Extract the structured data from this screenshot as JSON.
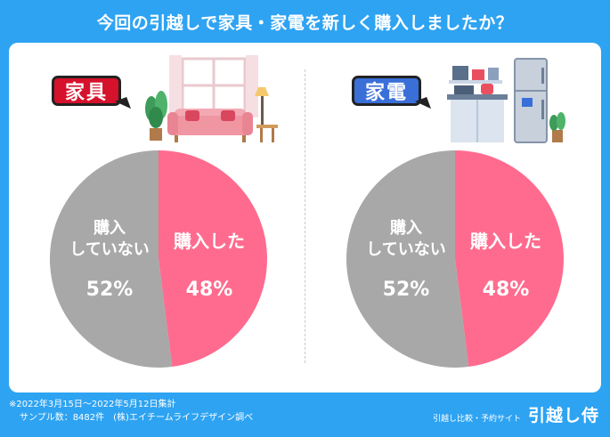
{
  "title": "今回の引越しで家具・家電を新しく購入しましたか？",
  "colors": {
    "background": "#2ea3f2",
    "bought": "#ff6b8e",
    "not_bought": "#a8a8a8",
    "badge_furniture": "#d6112b",
    "badge_appliance": "#3a6fd8"
  },
  "chart_data": [
    {
      "type": "pie",
      "title": "家具",
      "slices": [
        {
          "label": "購入した",
          "value": 48,
          "display": "48%"
        },
        {
          "label": "購入していない",
          "label_lines": [
            "購入",
            "していない"
          ],
          "value": 52,
          "display": "52%"
        }
      ]
    },
    {
      "type": "pie",
      "title": "家電",
      "slices": [
        {
          "label": "購入した",
          "value": 48,
          "display": "48%"
        },
        {
          "label": "購入していない",
          "label_lines": [
            "購入",
            "していない"
          ],
          "value": 52,
          "display": "52%"
        }
      ]
    }
  ],
  "footer": {
    "note_line1": "※2022年3月15日〜2022年5月12日集計",
    "note_line2": "サンプル数：8482件　(株)エイチームライフデザイン調べ",
    "brand_sub": "引越し比較・予約サイト",
    "brand_name": "引越し侍"
  },
  "icons": [
    "furniture-illustration",
    "appliance-illustration"
  ]
}
